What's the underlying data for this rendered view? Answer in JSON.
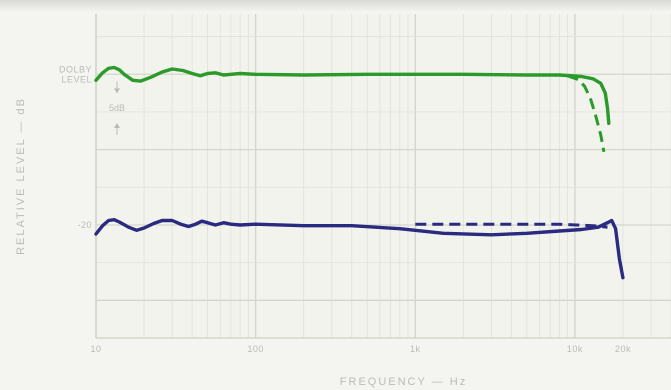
{
  "chart_data": {
    "type": "line",
    "xlabel": "FREQUENCY — Hz",
    "ylabel": "RELATIVE LEVEL — dB",
    "x_scale": "log",
    "xlim": [
      10,
      40000
    ],
    "x_ticks": [
      {
        "value": 10,
        "label": "10"
      },
      {
        "value": 100,
        "label": "100"
      },
      {
        "value": 1000,
        "label": "1k"
      },
      {
        "value": 10000,
        "label": "10k"
      },
      {
        "value": 20000,
        "label": "20k"
      }
    ],
    "ylim": [
      -35,
      8
    ],
    "y_ticks": [
      {
        "value": 0,
        "label": "DOLBY\nLEVEL"
      },
      {
        "value": -20,
        "label": "-20"
      }
    ],
    "grid": true,
    "annotations": [
      {
        "text": "5dB",
        "type": "scale-marker",
        "from": -2,
        "to": -7
      }
    ],
    "series": [
      {
        "color": "#2a9a2a",
        "style": "solid",
        "points": [
          [
            10,
            -0.8
          ],
          [
            11,
            0.2
          ],
          [
            12,
            0.8
          ],
          [
            13,
            0.9
          ],
          [
            14,
            0.6
          ],
          [
            15,
            0
          ],
          [
            17,
            -0.8
          ],
          [
            19,
            -0.9
          ],
          [
            22,
            -0.4
          ],
          [
            26,
            0.3
          ],
          [
            30,
            0.7
          ],
          [
            35,
            0.5
          ],
          [
            40,
            0.1
          ],
          [
            45,
            -0.2
          ],
          [
            50,
            0.1
          ],
          [
            56,
            0.2
          ],
          [
            63,
            -0.1
          ],
          [
            70,
            0
          ],
          [
            80,
            0.1
          ],
          [
            100,
            0
          ],
          [
            200,
            -0.1
          ],
          [
            500,
            0
          ],
          [
            1000,
            0
          ],
          [
            2000,
            0
          ],
          [
            5000,
            -0.1
          ],
          [
            8000,
            -0.1
          ],
          [
            11000,
            -0.3
          ],
          [
            13000,
            -0.6
          ],
          [
            14500,
            -1.2
          ],
          [
            15500,
            -2.5
          ],
          [
            16000,
            -4.5
          ],
          [
            16300,
            -6.5
          ]
        ]
      },
      {
        "color": "#2a9a2a",
        "style": "dashed",
        "points": [
          [
            9000,
            -0.2
          ],
          [
            10500,
            -0.7
          ],
          [
            11500,
            -1.6
          ],
          [
            12500,
            -3.2
          ],
          [
            13500,
            -5.5
          ],
          [
            14500,
            -8
          ],
          [
            15200,
            -10.3
          ]
        ]
      },
      {
        "color": "#2a2a80",
        "style": "solid",
        "points": [
          [
            10,
            -21.2
          ],
          [
            11,
            -20.1
          ],
          [
            12,
            -19.4
          ],
          [
            13,
            -19.3
          ],
          [
            14,
            -19.6
          ],
          [
            16,
            -20.3
          ],
          [
            18,
            -20.7
          ],
          [
            20,
            -20.4
          ],
          [
            23,
            -19.8
          ],
          [
            26,
            -19.4
          ],
          [
            30,
            -19.4
          ],
          [
            34,
            -19.9
          ],
          [
            38,
            -20.2
          ],
          [
            42,
            -19.9
          ],
          [
            46,
            -19.5
          ],
          [
            50,
            -19.7
          ],
          [
            56,
            -20.0
          ],
          [
            63,
            -19.7
          ],
          [
            70,
            -19.9
          ],
          [
            80,
            -20.0
          ],
          [
            100,
            -19.9
          ],
          [
            200,
            -20.1
          ],
          [
            400,
            -20.1
          ],
          [
            800,
            -20.5
          ],
          [
            1500,
            -21.1
          ],
          [
            3000,
            -21.3
          ],
          [
            5000,
            -21.1
          ],
          [
            8000,
            -20.8
          ],
          [
            11000,
            -20.6
          ],
          [
            14000,
            -20.3
          ],
          [
            16000,
            -19.7
          ],
          [
            17000,
            -19.4
          ],
          [
            18000,
            -20.5
          ],
          [
            19000,
            -24.5
          ],
          [
            20000,
            -27
          ]
        ]
      },
      {
        "color": "#2a2a80",
        "style": "dashed",
        "points": [
          [
            1000,
            -19.9
          ],
          [
            3000,
            -19.9
          ],
          [
            8000,
            -19.9
          ],
          [
            13000,
            -20.1
          ],
          [
            16000,
            -20.3
          ]
        ]
      }
    ]
  }
}
